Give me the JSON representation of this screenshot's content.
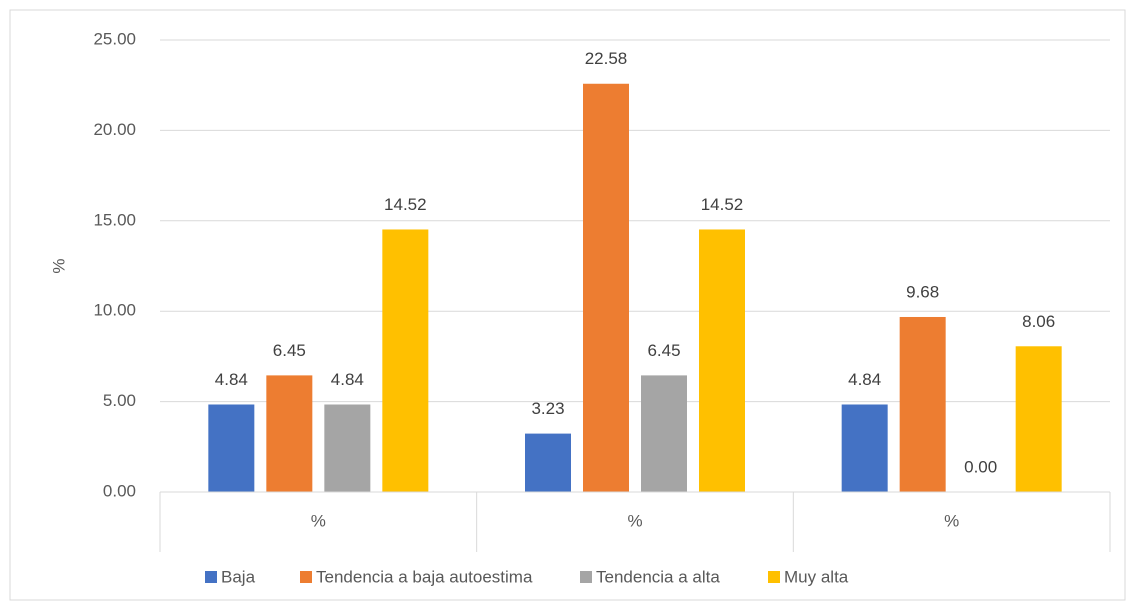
{
  "chart_data": {
    "type": "bar",
    "categories": [
      "%",
      "%",
      "%"
    ],
    "y_label": "%",
    "series": [
      {
        "name": "Baja",
        "color": "#4472c4",
        "values": [
          4.84,
          3.23,
          4.84
        ],
        "value_labels": [
          "4.84",
          "3.23",
          "4.84"
        ]
      },
      {
        "name": "Tendencia a baja autoestima",
        "color": "#ed7d31",
        "values": [
          6.45,
          22.58,
          9.68
        ],
        "value_labels": [
          "6.45",
          "22.58",
          "9.68"
        ]
      },
      {
        "name": "Tendencia a alta",
        "color": "#a5a5a5",
        "values": [
          4.84,
          6.45,
          0
        ],
        "value_labels": [
          "4.84",
          "6.45",
          "0.00"
        ]
      },
      {
        "name": "Muy alta",
        "color": "#ffc000",
        "values": [
          14.52,
          14.52,
          8.06
        ],
        "value_labels": [
          "14.52",
          "14.52",
          "8.06"
        ]
      }
    ],
    "ylim": [
      0,
      25
    ],
    "yticks": [
      {
        "value": 0,
        "label": "0.00"
      },
      {
        "value": 5,
        "label": "5.00"
      },
      {
        "value": 10,
        "label": "10.00"
      },
      {
        "value": 15,
        "label": "15.00"
      },
      {
        "value": 20,
        "label": "20.00"
      },
      {
        "value": 25,
        "label": "25.00"
      }
    ],
    "grid": true
  }
}
